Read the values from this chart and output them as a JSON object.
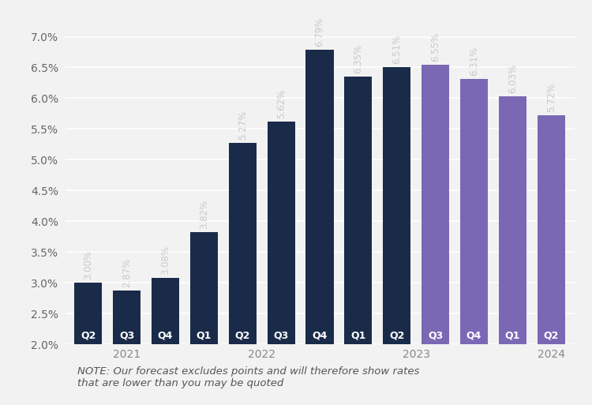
{
  "categories": [
    "Q2",
    "Q3",
    "Q4",
    "Q1",
    "Q2",
    "Q3",
    "Q4",
    "Q1",
    "Q2",
    "Q3",
    "Q4",
    "Q1",
    "Q2"
  ],
  "year_groups": [
    {
      "label": "2021",
      "start": 0,
      "end": 2
    },
    {
      "label": "2022",
      "start": 3,
      "end": 6
    },
    {
      "label": "2023",
      "start": 7,
      "end": 10
    },
    {
      "label": "2024",
      "start": 11,
      "end": 12
    }
  ],
  "values": [
    3.0,
    2.87,
    3.08,
    3.82,
    5.27,
    5.62,
    6.79,
    6.35,
    6.51,
    6.55,
    6.31,
    6.03,
    5.72
  ],
  "colors": [
    "#1a2b4a",
    "#1a2b4a",
    "#1a2b4a",
    "#1a2b4a",
    "#1a2b4a",
    "#1a2b4a",
    "#1a2b4a",
    "#1a2b4a",
    "#1a2b4a",
    "#7b68b5",
    "#7b68b5",
    "#7b68b5",
    "#7b68b5"
  ],
  "value_label_color": "#c8c8d0",
  "quarter_label_color": "#ffffff",
  "year_label_color": "#888888",
  "ylim": [
    2.0,
    7.4
  ],
  "yticks": [
    2.0,
    2.5,
    3.0,
    3.5,
    4.0,
    4.5,
    5.0,
    5.5,
    6.0,
    6.5,
    7.0
  ],
  "ytick_labels": [
    "2.0%",
    "2.5%",
    "3.0%",
    "3.5%",
    "4.0%",
    "4.5%",
    "5.0%",
    "5.5%",
    "6.0%",
    "6.5%",
    "7.0%"
  ],
  "background_color": "#f2f2f2",
  "grid_color": "#ffffff",
  "note_text": "NOTE: Our forecast excludes points and will therefore show rates\nthat are lower than you may be quoted",
  "bar_width": 0.72,
  "value_label_fontsize": 8.5,
  "quarter_fontsize": 9,
  "year_fontsize": 10,
  "note_fontsize": 9.5
}
